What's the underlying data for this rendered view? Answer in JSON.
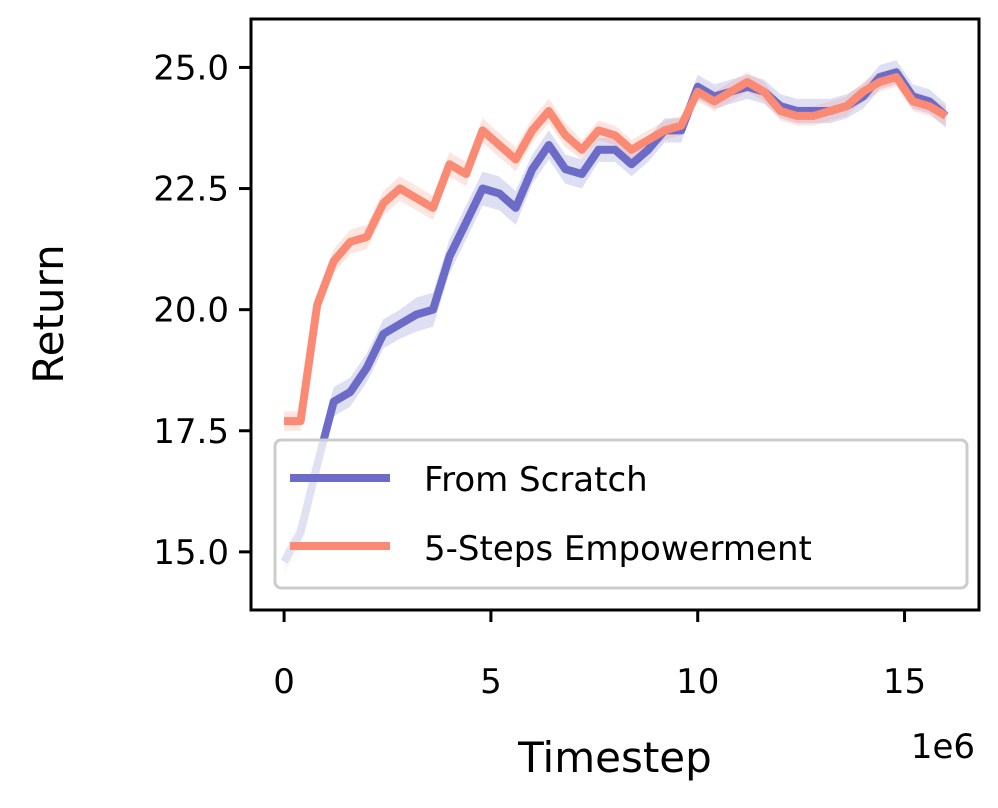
{
  "chart_data": {
    "type": "line",
    "xlabel": "Timestep",
    "ylabel": "Return",
    "x_offset_text": "1e6",
    "xlim": [
      -0.8,
      16.8
    ],
    "ylim": [
      13.8,
      26.0
    ],
    "xticks": [
      0,
      5,
      10,
      15
    ],
    "xtick_labels": [
      "0",
      "5",
      "10",
      "15"
    ],
    "yticks": [
      15.0,
      17.5,
      20.0,
      22.5,
      25.0
    ],
    "ytick_labels": [
      "15.0",
      "17.5",
      "20.0",
      "22.5",
      "25.0"
    ],
    "grid": false,
    "legend_position": "lower-right",
    "x": [
      0,
      0.4,
      0.8,
      1.2,
      1.6,
      2.0,
      2.4,
      2.8,
      3.2,
      3.6,
      4.0,
      4.4,
      4.8,
      5.2,
      5.6,
      6.0,
      6.4,
      6.8,
      7.2,
      7.6,
      8.0,
      8.4,
      8.8,
      9.2,
      9.6,
      10.0,
      10.4,
      10.8,
      11.2,
      11.6,
      12.0,
      12.4,
      12.8,
      13.2,
      13.6,
      14.0,
      14.4,
      14.8,
      15.2,
      15.6,
      16.0
    ],
    "series": [
      {
        "name": "From Scratch",
        "color": "#6c6cc8",
        "values": [
          14.8,
          15.4,
          16.8,
          18.1,
          18.3,
          18.8,
          19.5,
          19.7,
          19.9,
          20.0,
          21.1,
          21.8,
          22.5,
          22.4,
          22.1,
          22.9,
          23.4,
          22.9,
          22.8,
          23.3,
          23.3,
          23.0,
          23.3,
          23.7,
          23.7,
          24.6,
          24.4,
          24.5,
          24.6,
          24.5,
          24.2,
          24.1,
          24.1,
          24.1,
          24.2,
          24.4,
          24.8,
          24.9,
          24.4,
          24.3,
          24.0
        ],
        "band": [
          0.25,
          0.3,
          0.3,
          0.3,
          0.3,
          0.3,
          0.3,
          0.3,
          0.35,
          0.35,
          0.35,
          0.35,
          0.35,
          0.35,
          0.35,
          0.3,
          0.3,
          0.3,
          0.3,
          0.25,
          0.25,
          0.25,
          0.25,
          0.25,
          0.25,
          0.25,
          0.25,
          0.25,
          0.25,
          0.25,
          0.25,
          0.25,
          0.25,
          0.25,
          0.25,
          0.25,
          0.25,
          0.25,
          0.25,
          0.25,
          0.25
        ]
      },
      {
        "name": "5-Steps Empowerment",
        "color": "#fa8a74",
        "values": [
          17.7,
          17.7,
          20.1,
          21.0,
          21.4,
          21.5,
          22.2,
          22.5,
          22.3,
          22.1,
          23.0,
          22.8,
          23.7,
          23.4,
          23.1,
          23.7,
          24.1,
          23.6,
          23.3,
          23.7,
          23.6,
          23.3,
          23.5,
          23.7,
          23.8,
          24.5,
          24.3,
          24.5,
          24.7,
          24.5,
          24.1,
          24.0,
          24.0,
          24.1,
          24.2,
          24.5,
          24.7,
          24.8,
          24.3,
          24.2,
          24.0
        ],
        "band": [
          0.2,
          0.2,
          0.25,
          0.25,
          0.25,
          0.25,
          0.25,
          0.25,
          0.25,
          0.25,
          0.25,
          0.25,
          0.25,
          0.25,
          0.25,
          0.25,
          0.25,
          0.25,
          0.2,
          0.2,
          0.2,
          0.2,
          0.2,
          0.2,
          0.2,
          0.2,
          0.2,
          0.2,
          0.2,
          0.2,
          0.2,
          0.2,
          0.2,
          0.2,
          0.2,
          0.2,
          0.2,
          0.2,
          0.2,
          0.2,
          0.2
        ]
      }
    ]
  }
}
